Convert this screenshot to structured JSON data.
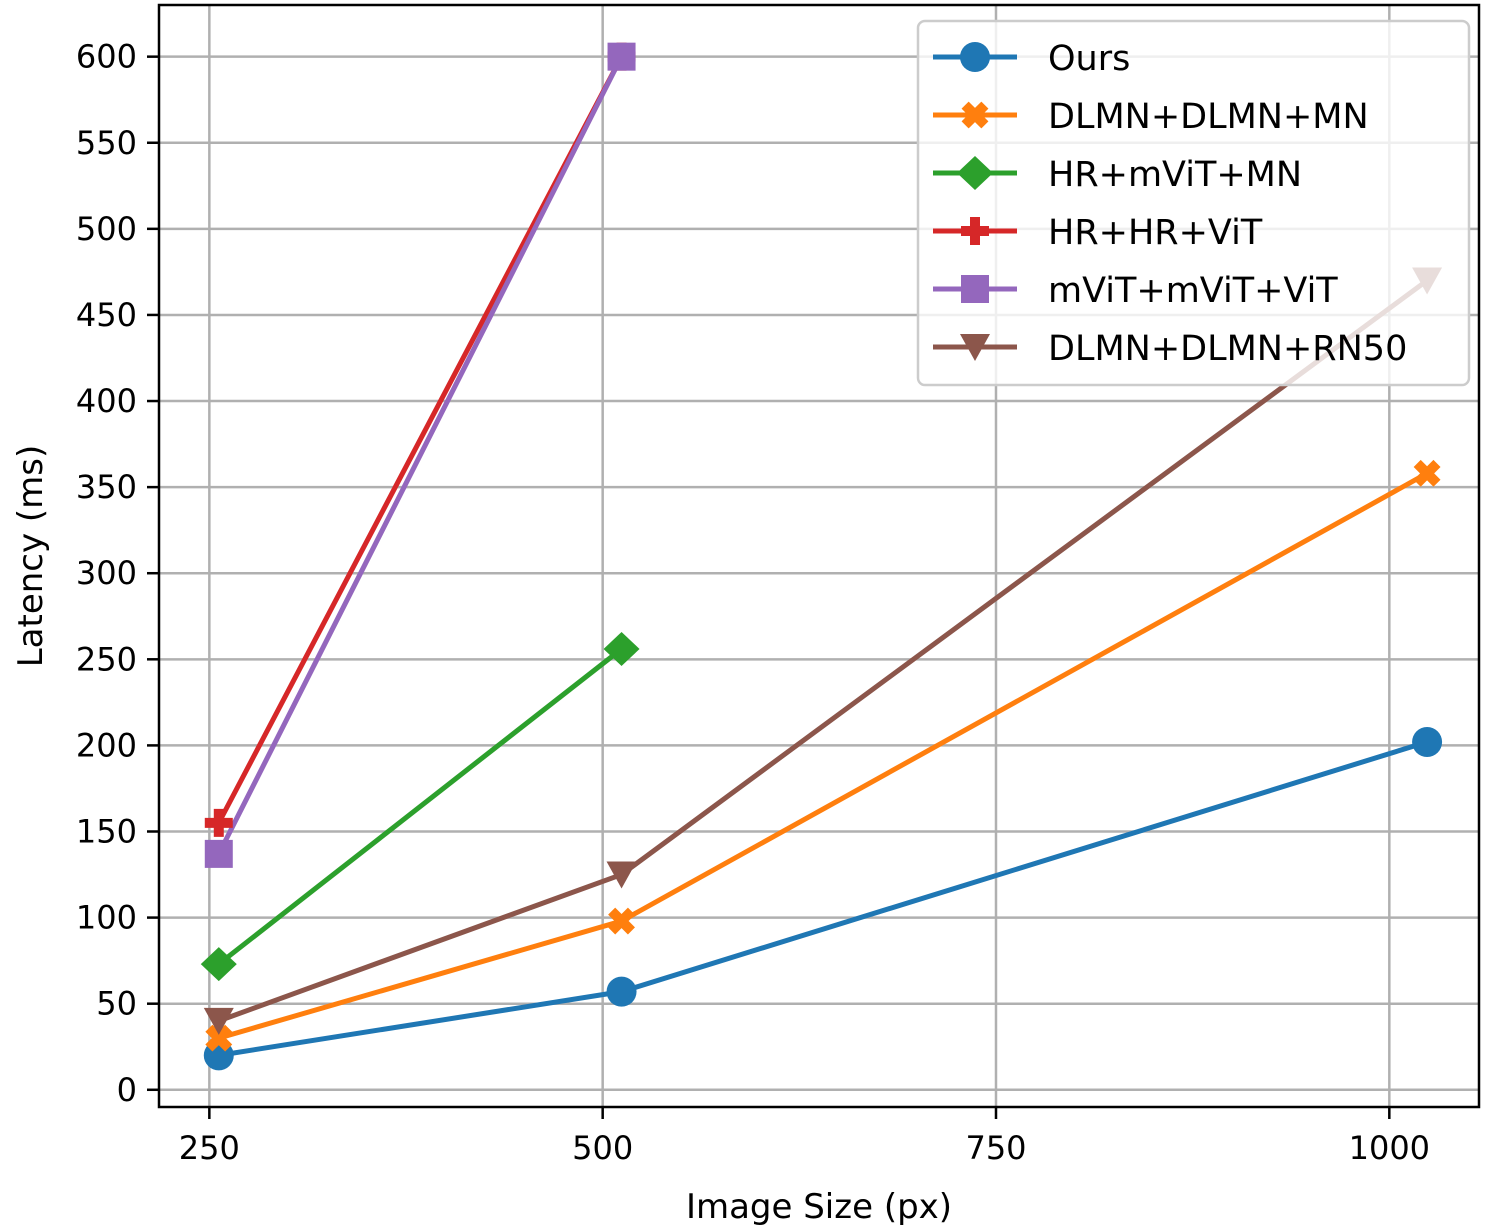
{
  "chart_data": {
    "type": "line",
    "title": "",
    "xlabel": "Image Size (px)",
    "ylabel": "Latency (ms)",
    "xlim": [
      218,
      1057
    ],
    "ylim": [
      -10,
      630
    ],
    "xticks": [
      250,
      500,
      750,
      1000
    ],
    "xtick_labels": [
      "250",
      "500",
      "750",
      "1000"
    ],
    "yticks": [
      0,
      50,
      100,
      150,
      200,
      250,
      300,
      350,
      400,
      450,
      500,
      550,
      600
    ],
    "ytick_labels": [
      "0",
      "50",
      "100",
      "150",
      "200",
      "250",
      "300",
      "350",
      "400",
      "450",
      "500",
      "550",
      "600"
    ],
    "grid": true,
    "legend_position": "top-right",
    "series": [
      {
        "name": "Ours",
        "x": [
          256,
          512,
          1024
        ],
        "y": [
          20,
          57,
          202
        ],
        "color": "#1f77b4",
        "marker": "circle"
      },
      {
        "name": "DLMN+DLMN+MN",
        "x": [
          256,
          512,
          1024
        ],
        "y": [
          30,
          98,
          358
        ],
        "color": "#ff7f0e",
        "marker": "x-filled"
      },
      {
        "name": "HR+mViT+MN",
        "x": [
          256,
          512
        ],
        "y": [
          73,
          256
        ],
        "color": "#2ca02c",
        "marker": "diamond"
      },
      {
        "name": "HR+HR+ViT",
        "x": [
          256,
          512
        ],
        "y": [
          155,
          600
        ],
        "color": "#d62728",
        "marker": "plus-filled"
      },
      {
        "name": "mViT+mViT+ViT",
        "x": [
          256,
          512
        ],
        "y": [
          137,
          600
        ],
        "color": "#9467bd",
        "marker": "square"
      },
      {
        "name": "DLMN+DLMN+RN50",
        "x": [
          256,
          512,
          1024
        ],
        "y": [
          40,
          125,
          470
        ],
        "color": "#8c564b",
        "marker": "triangle-down"
      }
    ]
  }
}
